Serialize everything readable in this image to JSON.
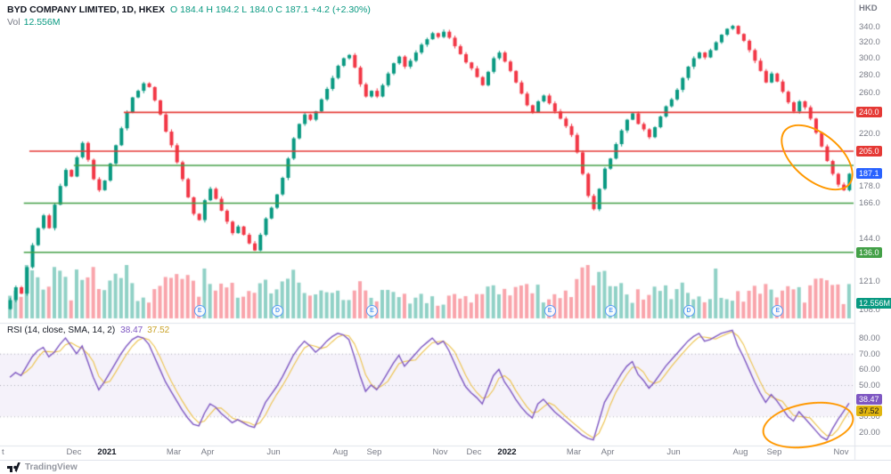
{
  "header": {
    "symbol_line": "BYD COMPANY LIMITED, 1D, HKEX",
    "ohlc": {
      "o_label": "O",
      "o": "184.4",
      "h_label": "H",
      "h": "194.2",
      "l_label": "L",
      "l": "184.0",
      "c_label": "C",
      "c": "187.1",
      "change": "+4.2 (+2.30%)"
    },
    "vol_label": "Vol",
    "vol_value": "12.556M"
  },
  "rsi_panel": {
    "title": "RSI (14, close, SMA, 14, 2)",
    "value": "38.47",
    "ma_value": "37.52"
  },
  "axis": {
    "currency": "HKD",
    "price_ticks": [
      {
        "label": "340.0",
        "price": 340
      },
      {
        "label": "320.0",
        "price": 320
      },
      {
        "label": "300.0",
        "price": 300
      },
      {
        "label": "280.0",
        "price": 280
      },
      {
        "label": "260.0",
        "price": 260
      },
      {
        "label": "220.0",
        "price": 220
      },
      {
        "label": "178.0",
        "price": 178
      },
      {
        "label": "166.0",
        "price": 166
      },
      {
        "label": "144.0",
        "price": 144
      },
      {
        "label": "121.0",
        "price": 121
      },
      {
        "label": "108.0",
        "price": 108
      }
    ],
    "price_badges": [
      {
        "label": "240.0",
        "price": 240,
        "kind": "resistance"
      },
      {
        "label": "205.0",
        "price": 205,
        "kind": "resistance"
      },
      {
        "label": "187.1",
        "price": 187.1,
        "kind": "last"
      },
      {
        "label": "136.0",
        "price": 136,
        "kind": "support"
      }
    ],
    "volume_badge": "12.556M",
    "rsi_ticks": [
      "80.00",
      "70.00",
      "60.00",
      "50.00",
      "40.00",
      "30.00",
      "20.00"
    ],
    "rsi_tick_values": [
      80,
      70,
      60,
      50,
      40,
      30,
      20
    ],
    "time_labels": [
      {
        "label": "t",
        "index": -1,
        "edge": true
      },
      {
        "label": "Dec",
        "index": 12
      },
      {
        "label": "2021",
        "index": 18,
        "year": true
      },
      {
        "label": "Mar",
        "index": 30
      },
      {
        "label": "Apr",
        "index": 36
      },
      {
        "label": "Jun",
        "index": 48
      },
      {
        "label": "Aug",
        "index": 60
      },
      {
        "label": "Sep",
        "index": 66
      },
      {
        "label": "Nov",
        "index": 78
      },
      {
        "label": "Dec",
        "index": 84
      },
      {
        "label": "2022",
        "index": 90,
        "year": true
      },
      {
        "label": "Mar",
        "index": 102
      },
      {
        "label": "Apr",
        "index": 108
      },
      {
        "label": "Jun",
        "index": 120
      },
      {
        "label": "Aug",
        "index": 132
      },
      {
        "label": "Sep",
        "index": 138
      },
      {
        "label": "Nov",
        "index": 150
      }
    ]
  },
  "markers": [
    {
      "index": 34,
      "label": "E"
    },
    {
      "index": 48,
      "label": "D"
    },
    {
      "index": 65,
      "label": "E"
    },
    {
      "index": 97,
      "label": "E"
    },
    {
      "index": 108,
      "label": "E"
    },
    {
      "index": 122,
      "label": "D"
    },
    {
      "index": 138,
      "label": "E"
    }
  ],
  "footer": {
    "brand": "TradingView"
  },
  "colors": {
    "up": "#089981",
    "down": "#f23645",
    "vol_up": "rgba(8,153,129,0.45)",
    "vol_down": "rgba(242,54,69,0.45)",
    "resistance": "#e53935",
    "support": "#43a047",
    "rsi_line": "#7e57c2",
    "rsi_ma": "#edc24a",
    "rsi_band_fill": "rgba(126,87,194,0.08)",
    "band_border": "rgba(120,123,134,0.55)",
    "separator": "#e0e3eb",
    "last_badge": "#2962ff",
    "annotation": "#ff9800"
  },
  "chart_data": {
    "type": "candlestick",
    "title": "BYD COMPANY LIMITED, 1D, HKEX",
    "currency": "HKD",
    "scale": "log",
    "price_axis_range": [
      104,
      368
    ],
    "time_range": [
      "Oct 2020",
      "Nov 2022"
    ],
    "last_candle": {
      "open": 184.4,
      "high": 194.2,
      "low": 184.0,
      "close": 187.1,
      "change_abs": 4.2,
      "change_pct": 2.3
    },
    "resistance_levels": [
      240,
      205
    ],
    "support_levels": [
      193.5,
      166,
      136
    ],
    "volume_last": "12.556M",
    "closes": [
      112,
      118,
      115,
      128,
      140,
      150,
      158,
      150,
      165,
      178,
      190,
      185,
      200,
      212,
      198,
      183,
      175,
      182,
      195,
      210,
      225,
      240,
      255,
      262,
      270,
      266,
      252,
      238,
      222,
      210,
      196,
      183,
      170,
      159,
      155,
      168,
      176,
      169,
      161,
      154,
      147,
      151,
      146,
      141,
      137,
      146,
      156,
      163,
      172,
      184,
      199,
      216,
      229,
      238,
      233,
      241,
      253,
      264,
      276,
      290,
      299,
      303,
      288,
      269,
      256,
      262,
      256,
      268,
      281,
      293,
      301,
      289,
      296,
      306,
      316,
      323,
      331,
      326,
      333,
      325,
      314,
      304,
      294,
      287,
      277,
      268,
      283,
      299,
      306,
      295,
      284,
      271,
      259,
      247,
      240,
      251,
      257,
      249,
      241,
      234,
      227,
      219,
      204,
      187,
      171,
      162,
      176,
      191,
      199,
      211,
      223,
      233,
      239,
      229,
      224,
      217,
      226,
      236,
      246,
      253,
      263,
      276,
      289,
      299,
      306,
      300,
      309,
      319,
      329,
      337,
      341,
      330,
      321,
      309,
      296,
      284,
      271,
      281,
      272,
      261,
      250,
      241,
      251,
      245,
      234,
      221,
      209,
      197,
      187,
      179,
      175,
      187.1
    ],
    "rsi_title": "RSI (14, close, SMA, 14, 2)",
    "rsi_range": [
      12,
      88
    ],
    "rsi_band": [
      30,
      70
    ],
    "rsi_mid": 50,
    "rsi_last": 38.47,
    "rsi_ma_last": 37.52,
    "rsi": [
      55,
      58,
      56,
      62,
      68,
      72,
      74,
      68,
      71,
      76,
      80,
      75,
      70,
      75,
      65,
      55,
      47,
      52,
      58,
      64,
      70,
      75,
      79,
      81,
      80,
      76,
      68,
      60,
      52,
      46,
      40,
      34,
      29,
      25,
      24,
      32,
      38,
      36,
      32,
      29,
      26,
      28,
      26,
      24,
      23,
      31,
      39,
      44,
      49,
      55,
      62,
      69,
      74,
      78,
      75,
      71,
      74,
      78,
      81,
      83,
      82,
      79,
      68,
      56,
      46,
      50,
      47,
      52,
      58,
      64,
      69,
      62,
      66,
      70,
      74,
      77,
      80,
      76,
      78,
      72,
      64,
      56,
      49,
      45,
      42,
      38,
      47,
      56,
      60,
      52,
      47,
      41,
      36,
      32,
      29,
      38,
      41,
      37,
      33,
      30,
      27,
      24,
      21,
      18,
      16,
      15,
      27,
      39,
      45,
      51,
      57,
      62,
      65,
      57,
      53,
      48,
      52,
      57,
      62,
      66,
      70,
      74,
      78,
      81,
      83,
      78,
      79,
      81,
      83,
      84,
      85,
      75,
      68,
      60,
      52,
      45,
      39,
      44,
      40,
      35,
      30,
      27,
      33,
      29,
      25,
      21,
      17,
      15,
      22,
      28,
      33,
      38.47
    ],
    "levels_render": [
      {
        "price": 240,
        "kind": "resistance",
        "from_index": 21
      },
      {
        "price": 205,
        "kind": "resistance",
        "from_index": 4
      },
      {
        "price": 193.5,
        "kind": "support",
        "from_index": 12
      },
      {
        "price": 166,
        "kind": "support",
        "from_index": 3
      },
      {
        "price": 136,
        "kind": "support",
        "from_index": 3
      }
    ]
  }
}
